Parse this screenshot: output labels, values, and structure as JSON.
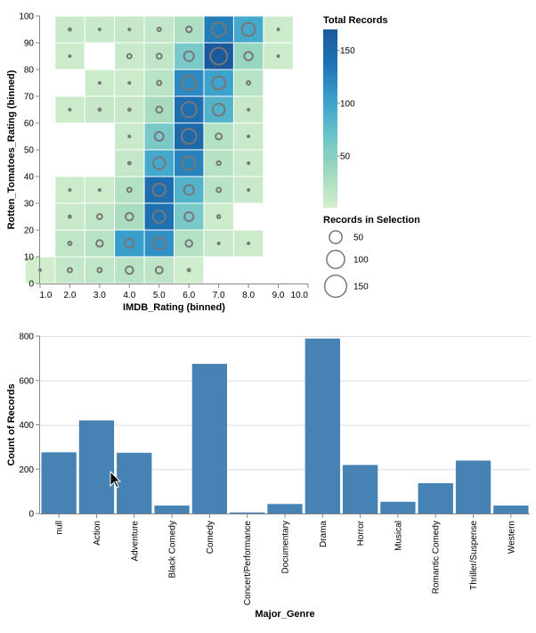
{
  "chart_data": [
    {
      "type": "heatmap",
      "xlabel": "IMDB_Rating (binned)",
      "ylabel": "Rotten_Tomatoes_Rating (binned)",
      "x_ticks": [
        "1.0",
        "2.0",
        "3.0",
        "4.0",
        "5.0",
        "6.0",
        "7.0",
        "8.0",
        "9.0",
        "10.0"
      ],
      "y_ticks": [
        "0",
        "10",
        "20",
        "30",
        "40",
        "50",
        "60",
        "70",
        "80",
        "90",
        "100"
      ],
      "xlim": [
        1,
        10
      ],
      "ylim": [
        0,
        100
      ],
      "color_legend": {
        "title": "Total Records",
        "labels": [
          "150",
          "100",
          "50"
        ],
        "domain": [
          1,
          170
        ],
        "colors": [
          "#d4eecd",
          "#9fd9bd",
          "#6bc4ca",
          "#3aa1cc",
          "#1f74b4",
          "#1a5a9c"
        ]
      },
      "size_legend": {
        "title": "Records in Selection",
        "labels": [
          "50",
          "100",
          "150"
        ]
      },
      "cells": [
        {
          "x": 1.0,
          "y": 0,
          "total": 3,
          "selected": 1
        },
        {
          "x": 2.0,
          "y": 0,
          "total": 12,
          "selected": 6
        },
        {
          "x": 3.0,
          "y": 0,
          "total": 14,
          "selected": 6
        },
        {
          "x": 4.0,
          "y": 0,
          "total": 18,
          "selected": 18
        },
        {
          "x": 5.0,
          "y": 0,
          "total": 15,
          "selected": 15
        },
        {
          "x": 6.0,
          "y": 0,
          "total": 4,
          "selected": 2
        },
        {
          "x": 2.0,
          "y": 10,
          "total": 14,
          "selected": 4
        },
        {
          "x": 3.0,
          "y": 10,
          "total": 18,
          "selected": 14
        },
        {
          "x": 4.0,
          "y": 10,
          "total": 105,
          "selected": 24
        },
        {
          "x": 5.0,
          "y": 10,
          "total": 115,
          "selected": 45
        },
        {
          "x": 6.0,
          "y": 10,
          "total": 22,
          "selected": 14
        },
        {
          "x": 7.0,
          "y": 10,
          "total": 8,
          "selected": 1
        },
        {
          "x": 8.0,
          "y": 10,
          "total": 6,
          "selected": 1
        },
        {
          "x": 2.0,
          "y": 20,
          "total": 8,
          "selected": 2
        },
        {
          "x": 3.0,
          "y": 20,
          "total": 14,
          "selected": 8
        },
        {
          "x": 4.0,
          "y": 20,
          "total": 28,
          "selected": 18
        },
        {
          "x": 5.0,
          "y": 20,
          "total": 140,
          "selected": 46
        },
        {
          "x": 6.0,
          "y": 20,
          "total": 60,
          "selected": 25
        },
        {
          "x": 7.0,
          "y": 20,
          "total": 6,
          "selected": 3
        },
        {
          "x": 2.0,
          "y": 30,
          "total": 6,
          "selected": 1
        },
        {
          "x": 3.0,
          "y": 30,
          "total": 6,
          "selected": 1
        },
        {
          "x": 4.0,
          "y": 30,
          "total": 22,
          "selected": 6
        },
        {
          "x": 5.0,
          "y": 30,
          "total": 145,
          "selected": 50
        },
        {
          "x": 6.0,
          "y": 30,
          "total": 85,
          "selected": 30
        },
        {
          "x": 7.0,
          "y": 30,
          "total": 18,
          "selected": 6
        },
        {
          "x": 8.0,
          "y": 30,
          "total": 8,
          "selected": 1
        },
        {
          "x": 4.0,
          "y": 40,
          "total": 12,
          "selected": 2
        },
        {
          "x": 5.0,
          "y": 40,
          "total": 95,
          "selected": 45
        },
        {
          "x": 6.0,
          "y": 40,
          "total": 125,
          "selected": 54
        },
        {
          "x": 7.0,
          "y": 40,
          "total": 20,
          "selected": 5
        },
        {
          "x": 8.0,
          "y": 40,
          "total": 8,
          "selected": 1
        },
        {
          "x": 4.0,
          "y": 50,
          "total": 8,
          "selected": 1
        },
        {
          "x": 5.0,
          "y": 50,
          "total": 60,
          "selected": 24
        },
        {
          "x": 6.0,
          "y": 50,
          "total": 150,
          "selected": 68
        },
        {
          "x": 7.0,
          "y": 50,
          "total": 22,
          "selected": 12
        },
        {
          "x": 8.0,
          "y": 50,
          "total": 8,
          "selected": 1
        },
        {
          "x": 2.0,
          "y": 60,
          "total": 6,
          "selected": 1
        },
        {
          "x": 3.0,
          "y": 60,
          "total": 10,
          "selected": 2
        },
        {
          "x": 4.0,
          "y": 60,
          "total": 10,
          "selected": 2
        },
        {
          "x": 5.0,
          "y": 60,
          "total": 30,
          "selected": 12
        },
        {
          "x": 6.0,
          "y": 60,
          "total": 145,
          "selected": 72
        },
        {
          "x": 7.0,
          "y": 60,
          "total": 85,
          "selected": 45
        },
        {
          "x": 8.0,
          "y": 60,
          "total": 10,
          "selected": 1
        },
        {
          "x": 3.0,
          "y": 70,
          "total": 6,
          "selected": 1
        },
        {
          "x": 4.0,
          "y": 70,
          "total": 6,
          "selected": 1
        },
        {
          "x": 5.0,
          "y": 70,
          "total": 18,
          "selected": 6
        },
        {
          "x": 6.0,
          "y": 70,
          "total": 120,
          "selected": 60
        },
        {
          "x": 7.0,
          "y": 70,
          "total": 100,
          "selected": 54
        },
        {
          "x": 8.0,
          "y": 70,
          "total": 18,
          "selected": 4
        },
        {
          "x": 2.0,
          "y": 80,
          "total": 6,
          "selected": 1
        },
        {
          "x": 4.0,
          "y": 80,
          "total": 8,
          "selected": 6
        },
        {
          "x": 5.0,
          "y": 80,
          "total": 14,
          "selected": 8
        },
        {
          "x": 6.0,
          "y": 80,
          "total": 60,
          "selected": 30
        },
        {
          "x": 7.0,
          "y": 80,
          "total": 170,
          "selected": 88
        },
        {
          "x": 8.0,
          "y": 80,
          "total": 40,
          "selected": 22
        },
        {
          "x": 9.0,
          "y": 80,
          "total": 6,
          "selected": 1
        },
        {
          "x": 2.0,
          "y": 90,
          "total": 8,
          "selected": 2
        },
        {
          "x": 3.0,
          "y": 90,
          "total": 8,
          "selected": 1
        },
        {
          "x": 4.0,
          "y": 90,
          "total": 10,
          "selected": 1
        },
        {
          "x": 5.0,
          "y": 90,
          "total": 12,
          "selected": 4
        },
        {
          "x": 6.0,
          "y": 90,
          "total": 25,
          "selected": 10
        },
        {
          "x": 7.0,
          "y": 90,
          "total": 130,
          "selected": 60
        },
        {
          "x": 8.0,
          "y": 90,
          "total": 95,
          "selected": 54
        },
        {
          "x": 9.0,
          "y": 90,
          "total": 6,
          "selected": 1
        }
      ]
    },
    {
      "type": "bar",
      "xlabel": "Major_Genre",
      "ylabel": "Count of Records",
      "ylim": [
        0,
        800
      ],
      "y_ticks": [
        "0",
        "200",
        "400",
        "600",
        "800"
      ],
      "color": "#4682b4",
      "categories": [
        "null",
        "Action",
        "Adventure",
        "Black Comedy",
        "Comedy",
        "Concert/Performance",
        "Documentary",
        "Drama",
        "Horror",
        "Musical",
        "Romantic Comedy",
        "Thriller/Suspense",
        "Western"
      ],
      "values": [
        276,
        420,
        274,
        36,
        675,
        5,
        43,
        789,
        219,
        53,
        137,
        239,
        36
      ]
    }
  ]
}
